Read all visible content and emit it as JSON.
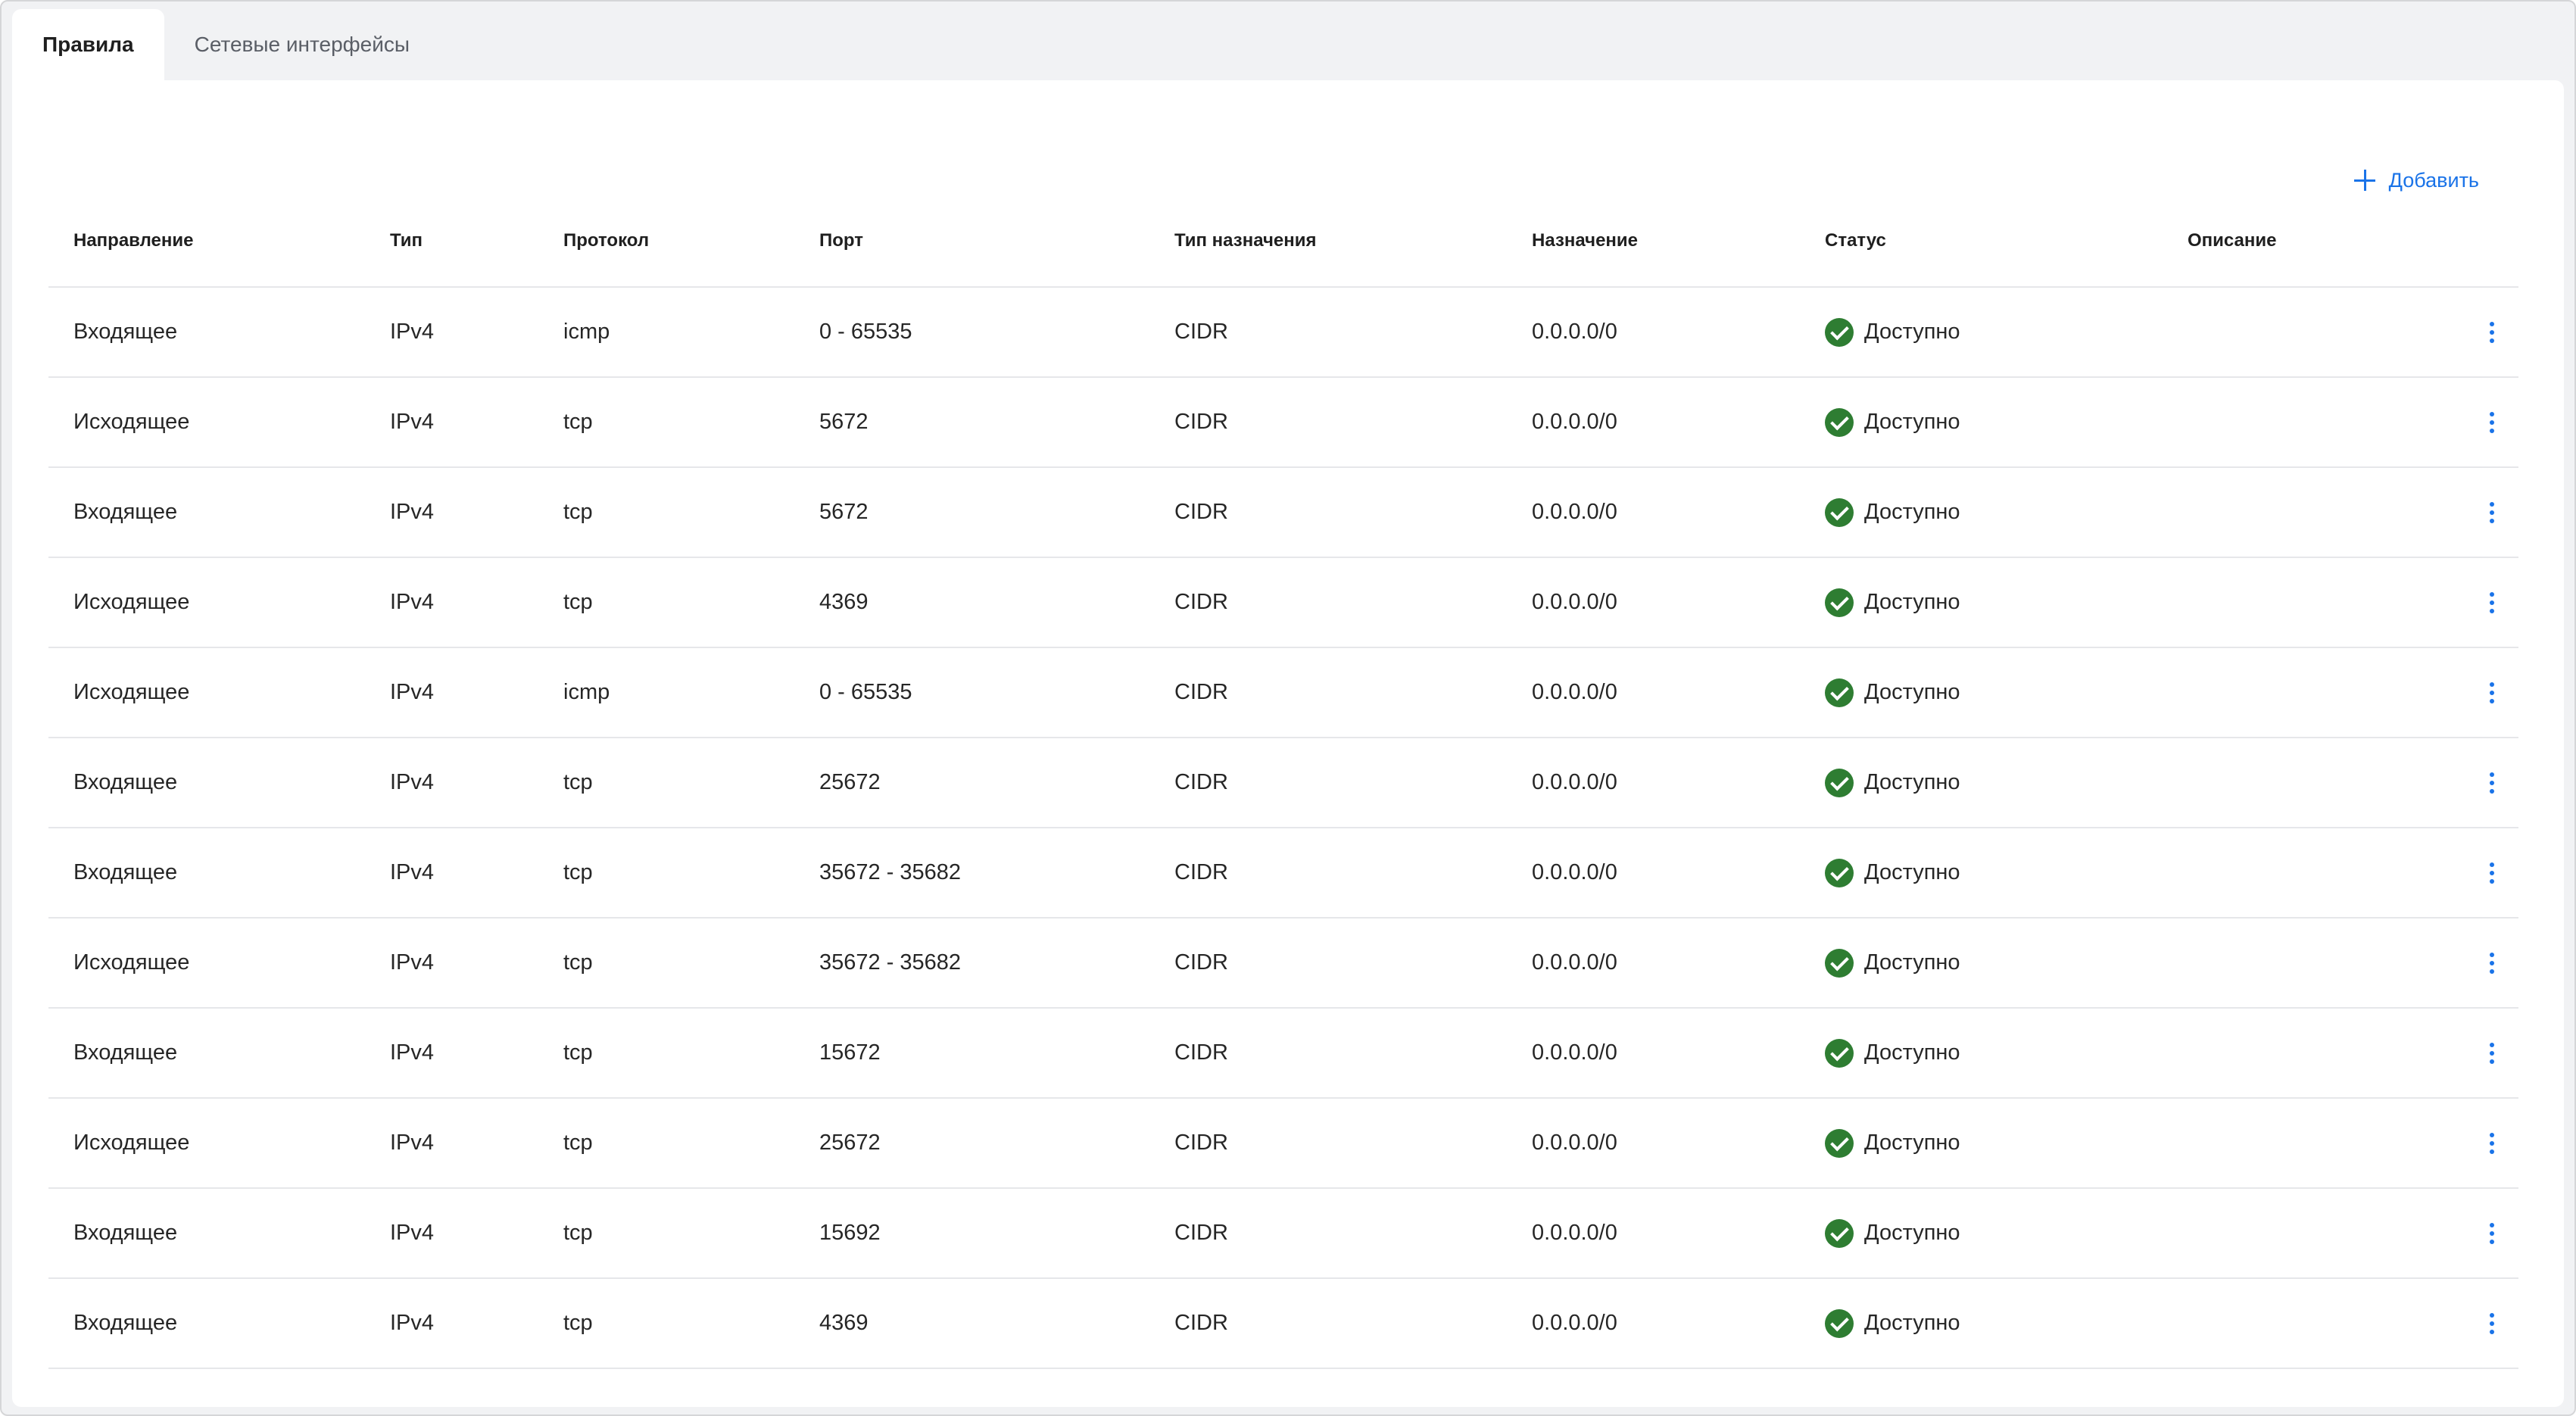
{
  "tabs": [
    {
      "label": "Правила",
      "active": true
    },
    {
      "label": "Сетевые интерфейсы",
      "active": false
    }
  ],
  "toolbar": {
    "add_label": "Добавить"
  },
  "colors": {
    "accent": "#1a73e8",
    "status_ok": "#2e7d32"
  },
  "table": {
    "headers": [
      "Направление",
      "Тип",
      "Протокол",
      "Порт",
      "Тип назначения",
      "Назначение",
      "Статус",
      "Описание"
    ],
    "rows": [
      {
        "direction": "Входящее",
        "type": "IPv4",
        "protocol": "icmp",
        "port": "0 - 65535",
        "dest_type": "CIDR",
        "destination": "0.0.0.0/0",
        "status": "Доступно",
        "description": ""
      },
      {
        "direction": "Исходящее",
        "type": "IPv4",
        "protocol": "tcp",
        "port": "5672",
        "dest_type": "CIDR",
        "destination": "0.0.0.0/0",
        "status": "Доступно",
        "description": ""
      },
      {
        "direction": "Входящее",
        "type": "IPv4",
        "protocol": "tcp",
        "port": "5672",
        "dest_type": "CIDR",
        "destination": "0.0.0.0/0",
        "status": "Доступно",
        "description": ""
      },
      {
        "direction": "Исходящее",
        "type": "IPv4",
        "protocol": "tcp",
        "port": "4369",
        "dest_type": "CIDR",
        "destination": "0.0.0.0/0",
        "status": "Доступно",
        "description": ""
      },
      {
        "direction": "Исходящее",
        "type": "IPv4",
        "protocol": "icmp",
        "port": "0 - 65535",
        "dest_type": "CIDR",
        "destination": "0.0.0.0/0",
        "status": "Доступно",
        "description": ""
      },
      {
        "direction": "Входящее",
        "type": "IPv4",
        "protocol": "tcp",
        "port": "25672",
        "dest_type": "CIDR",
        "destination": "0.0.0.0/0",
        "status": "Доступно",
        "description": ""
      },
      {
        "direction": "Входящее",
        "type": "IPv4",
        "protocol": "tcp",
        "port": "35672 - 35682",
        "dest_type": "CIDR",
        "destination": "0.0.0.0/0",
        "status": "Доступно",
        "description": ""
      },
      {
        "direction": "Исходящее",
        "type": "IPv4",
        "protocol": "tcp",
        "port": "35672 - 35682",
        "dest_type": "CIDR",
        "destination": "0.0.0.0/0",
        "status": "Доступно",
        "description": ""
      },
      {
        "direction": "Входящее",
        "type": "IPv4",
        "protocol": "tcp",
        "port": "15672",
        "dest_type": "CIDR",
        "destination": "0.0.0.0/0",
        "status": "Доступно",
        "description": ""
      },
      {
        "direction": "Исходящее",
        "type": "IPv4",
        "protocol": "tcp",
        "port": "25672",
        "dest_type": "CIDR",
        "destination": "0.0.0.0/0",
        "status": "Доступно",
        "description": ""
      },
      {
        "direction": "Входящее",
        "type": "IPv4",
        "protocol": "tcp",
        "port": "15692",
        "dest_type": "CIDR",
        "destination": "0.0.0.0/0",
        "status": "Доступно",
        "description": ""
      },
      {
        "direction": "Входящее",
        "type": "IPv4",
        "protocol": "tcp",
        "port": "4369",
        "dest_type": "CIDR",
        "destination": "0.0.0.0/0",
        "status": "Доступно",
        "description": ""
      }
    ]
  }
}
